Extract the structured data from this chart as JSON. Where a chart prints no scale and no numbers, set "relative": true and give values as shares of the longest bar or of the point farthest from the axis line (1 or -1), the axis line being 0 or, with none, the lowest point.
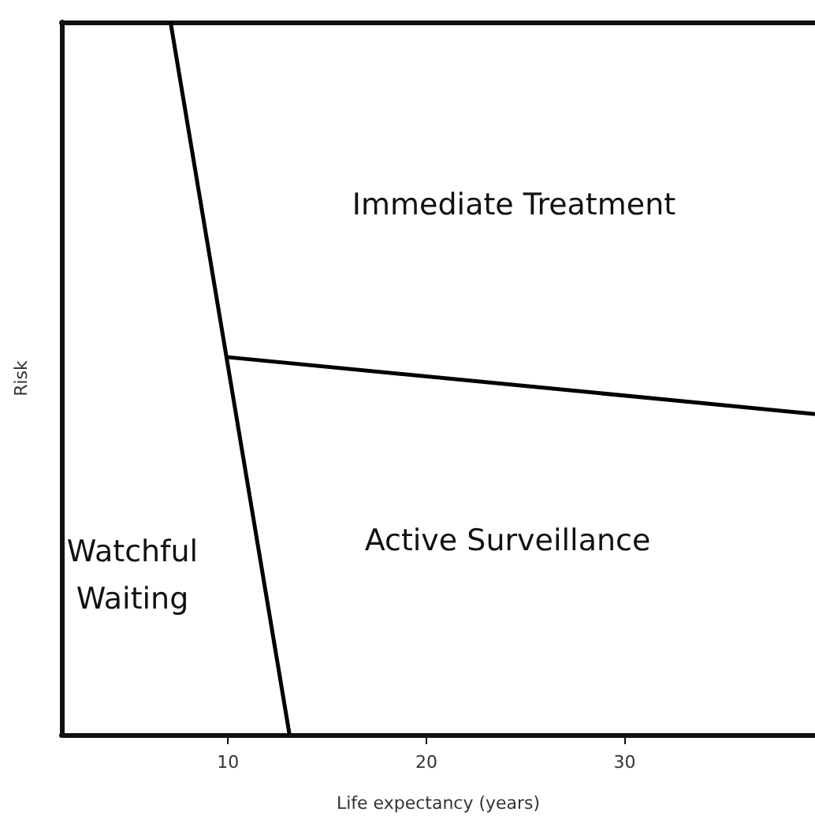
{
  "chart_data": {
    "type": "line",
    "xlabel": "Life expectancy (years)",
    "ylabel": "Risk",
    "relative": true,
    "xlim": [
      1.6,
      39.6
    ],
    "xticks": [
      10,
      20,
      30
    ],
    "grid": false,
    "marker": "none",
    "line_style": "solid",
    "series": [
      {
        "color": "#000000",
        "x": [
          7.1,
          13.1
        ],
        "values": [
          1,
          0
        ]
      },
      {
        "color": "#000000",
        "x": [
          9.9,
          39.6
        ],
        "values": [
          0.53,
          0.45
        ]
      }
    ],
    "annotations": [
      "Immediate Treatment",
      "Active Surveillance",
      "Watchful\nWaiting"
    ]
  }
}
